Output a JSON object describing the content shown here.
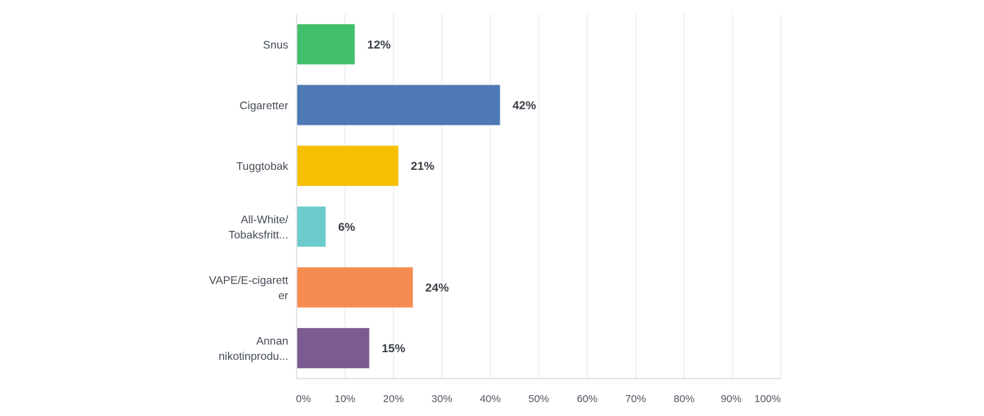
{
  "chart_data": {
    "type": "bar",
    "orientation": "horizontal",
    "categories": [
      [
        "Snus"
      ],
      [
        "Cigaretter"
      ],
      [
        "Tuggtobak"
      ],
      [
        "All-White/",
        "Tobaksfritt..."
      ],
      [
        "VAPE/E-cigarett",
        "er"
      ],
      [
        "Annan",
        "nikotinprodu..."
      ]
    ],
    "values": [
      12,
      42,
      21,
      6,
      24,
      15
    ],
    "value_labels": [
      "12%",
      "42%",
      "21%",
      "6%",
      "24%",
      "15%"
    ],
    "colors": [
      "#43bf6c",
      "#4d79b5",
      "#f6bf00",
      "#6ccbcc",
      "#f68c4f",
      "#7b5c91"
    ],
    "xlim": [
      0,
      100
    ],
    "xticks": [
      0,
      10,
      20,
      30,
      40,
      50,
      60,
      70,
      80,
      90,
      100
    ],
    "xtick_labels": [
      "0%",
      "10%",
      "20%",
      "30%",
      "40%",
      "50%",
      "60%",
      "70%",
      "80%",
      "90%",
      "100%"
    ],
    "grid": true,
    "legend": "none"
  }
}
